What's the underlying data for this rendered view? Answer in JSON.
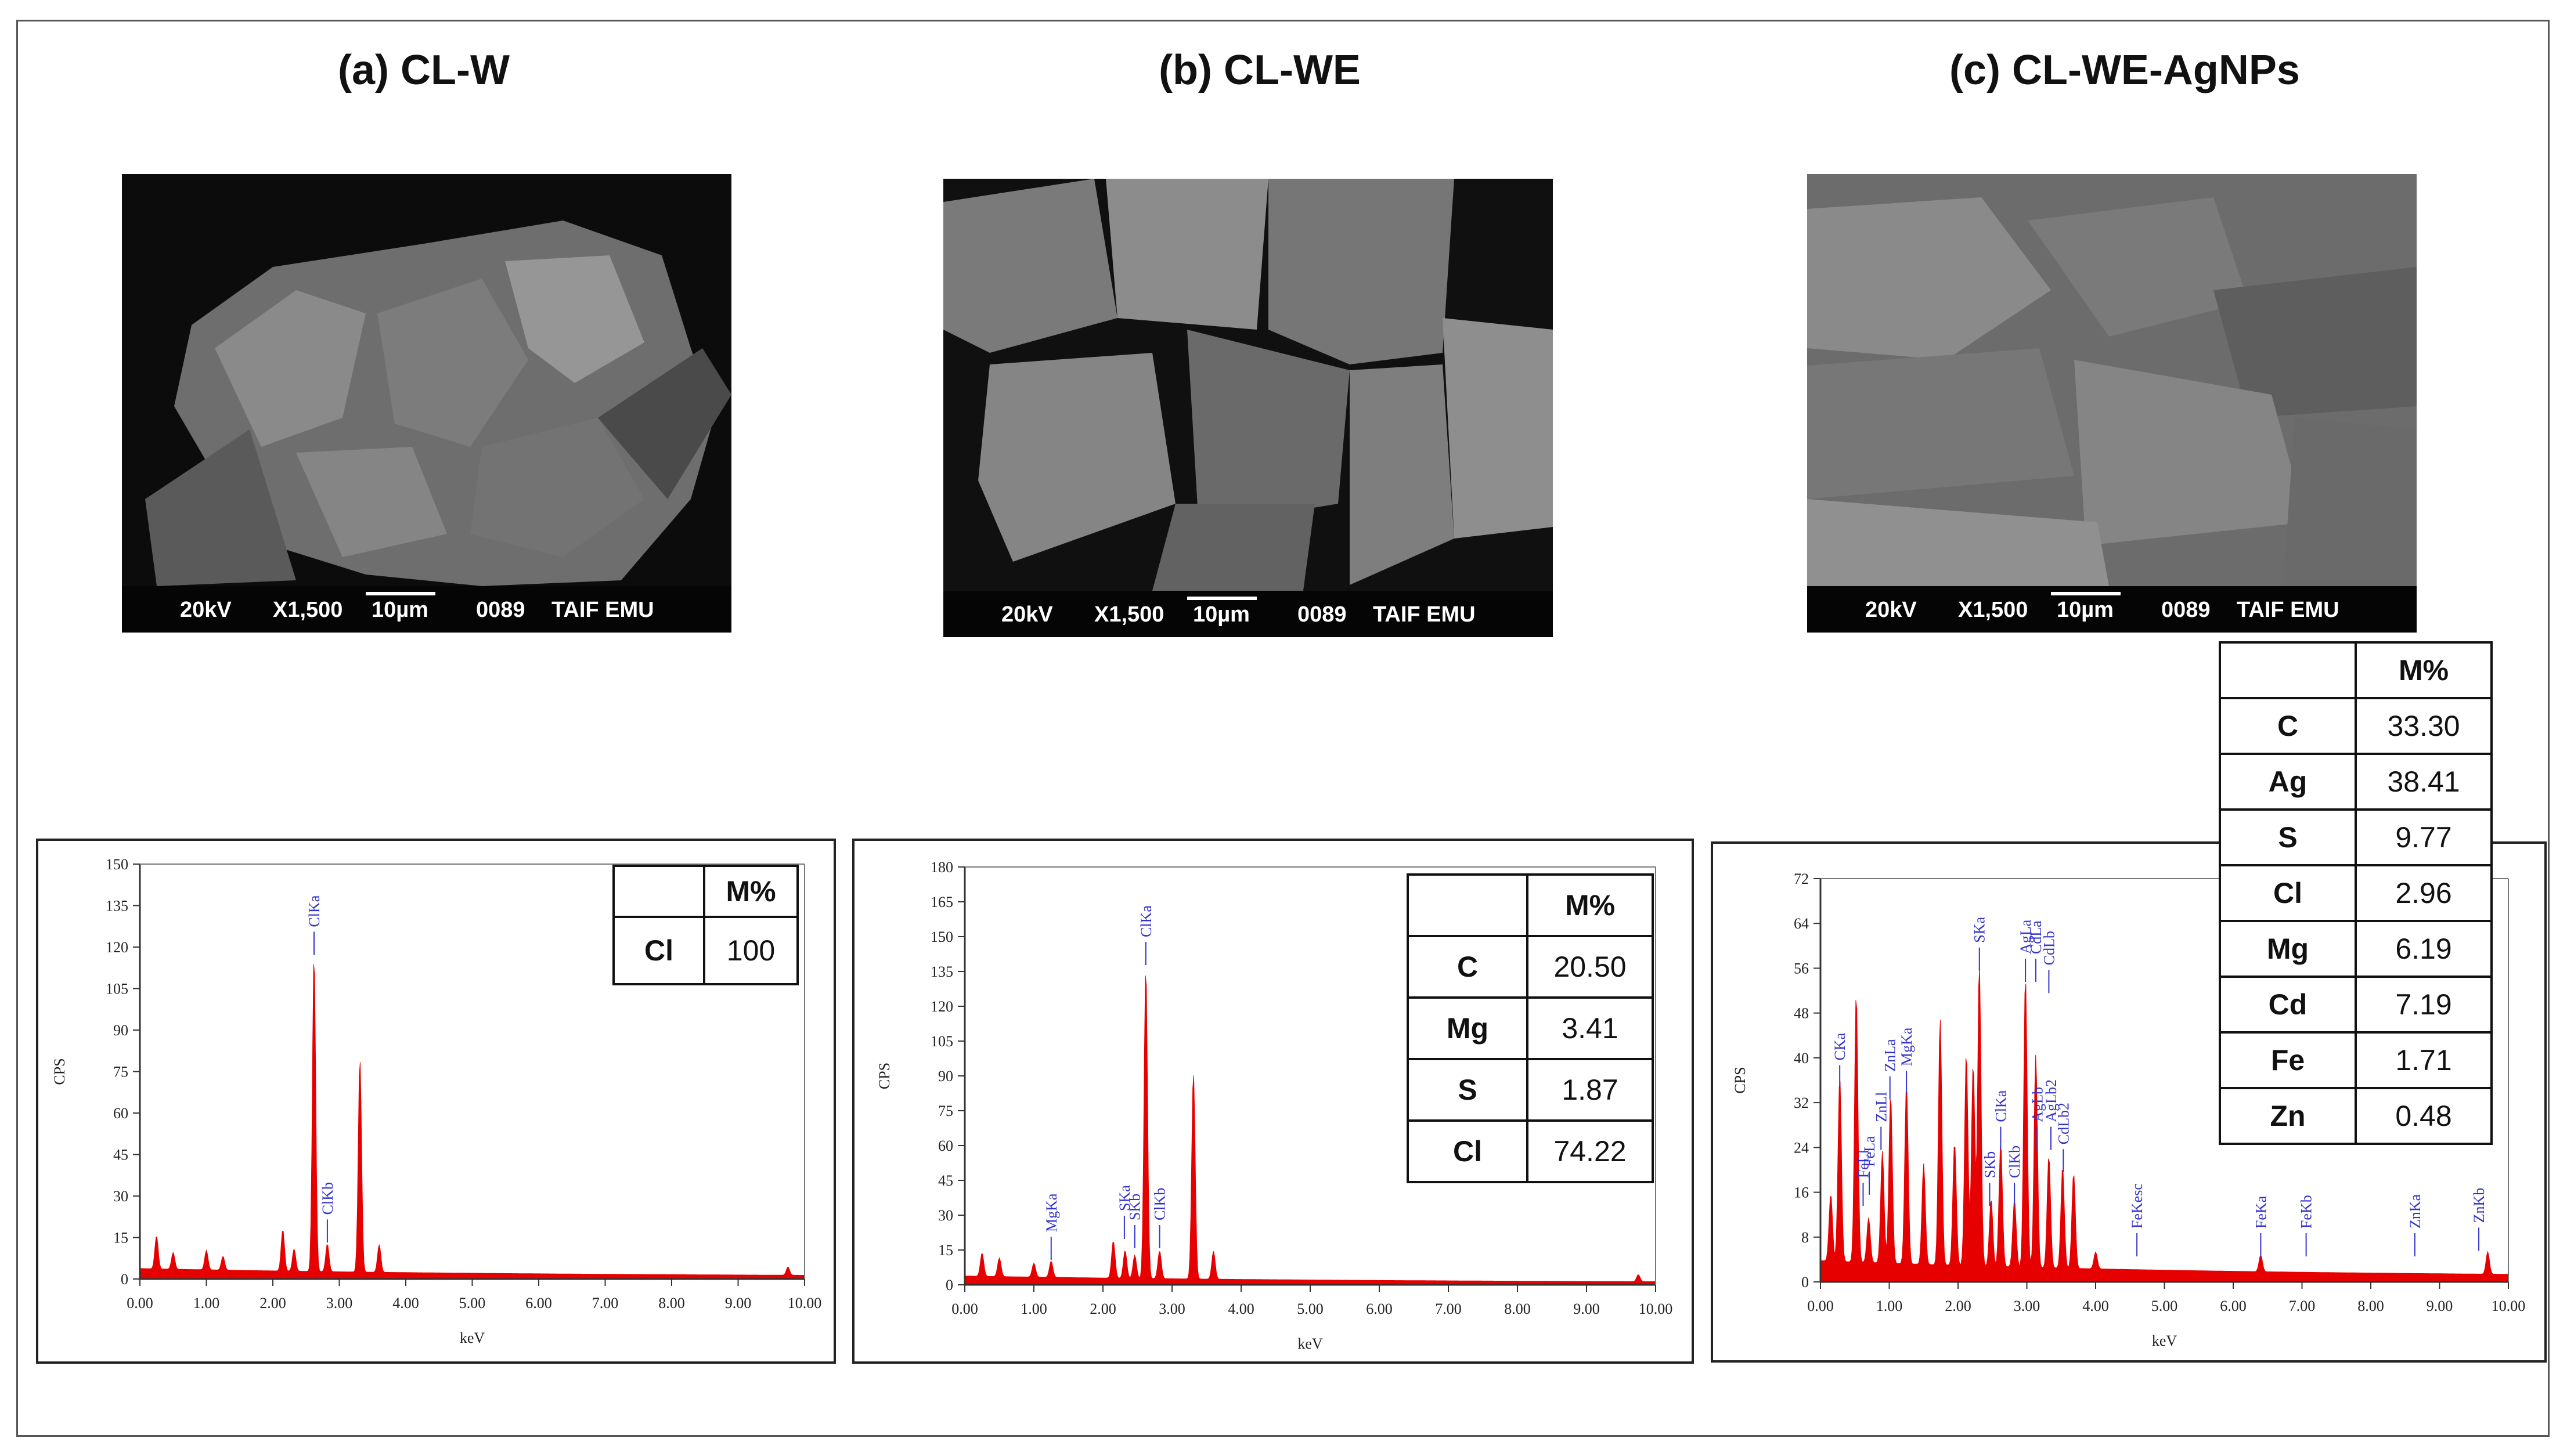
{
  "panels": [
    {
      "title": "(a) CL-W",
      "sem_bar": {
        "kv": "20kV",
        "mag": "X1,500",
        "scale": "10µm",
        "num": "0089",
        "lab": "TAIF EMU"
      },
      "table": {
        "header": "M%",
        "rows": [
          {
            "el": "Cl",
            "val": "100"
          }
        ]
      }
    },
    {
      "title": "(b) CL-WE",
      "sem_bar": {
        "kv": "20kV",
        "mag": "X1,500",
        "scale": "10µm",
        "num": "0089",
        "lab": "TAIF EMU"
      },
      "table": {
        "header": "M%",
        "rows": [
          {
            "el": "C",
            "val": "20.50"
          },
          {
            "el": "Mg",
            "val": "3.41"
          },
          {
            "el": "S",
            "val": "1.87"
          },
          {
            "el": "Cl",
            "val": "74.22"
          }
        ]
      }
    },
    {
      "title": "(c) CL-WE-AgNPs",
      "sem_bar": {
        "kv": "20kV",
        "mag": "X1,500",
        "scale": "10µm",
        "num": "0089",
        "lab": "TAIF EMU"
      },
      "table": {
        "header": "M%",
        "rows": [
          {
            "el": "C",
            "val": "33.30"
          },
          {
            "el": "Ag",
            "val": "38.41"
          },
          {
            "el": "S",
            "val": "9.77"
          },
          {
            "el": "Cl",
            "val": "2.96"
          },
          {
            "el": "Mg",
            "val": "6.19"
          },
          {
            "el": "Cd",
            "val": "7.19"
          },
          {
            "el": "Fe",
            "val": "1.71"
          },
          {
            "el": "Zn",
            "val": "0.48"
          }
        ]
      }
    }
  ],
  "chart_data": [
    {
      "type": "area",
      "xlabel": "keV",
      "ylabel": "CPS",
      "xlim": [
        0,
        10
      ],
      "ylim": [
        0,
        150
      ],
      "xticks": [
        "0.00",
        "1.00",
        "2.00",
        "3.00",
        "4.00",
        "5.00",
        "6.00",
        "7.00",
        "8.00",
        "9.00",
        "10.00"
      ],
      "yticks": [
        "0",
        "15",
        "30",
        "45",
        "60",
        "75",
        "90",
        "105",
        "120",
        "135",
        "150"
      ],
      "fill_color": "#e60000",
      "label_color": "#3333cc",
      "peaks": [
        [
          0.25,
          12
        ],
        [
          0.5,
          6
        ],
        [
          1.0,
          7
        ],
        [
          1.25,
          5
        ],
        [
          2.15,
          15
        ],
        [
          2.32,
          8
        ],
        [
          2.62,
          114
        ],
        [
          2.82,
          10
        ],
        [
          3.31,
          77
        ],
        [
          3.6,
          10
        ],
        [
          9.75,
          3
        ]
      ],
      "baseline": 3,
      "annotations": [
        {
          "label": "ClKa",
          "x": 2.62,
          "y": 114
        },
        {
          "label": "ClKb",
          "x": 2.82,
          "y": 10
        }
      ]
    },
    {
      "type": "area",
      "xlabel": "keV",
      "ylabel": "CPS",
      "xlim": [
        0,
        10
      ],
      "ylim": [
        0,
        180
      ],
      "xticks": [
        "0.00",
        "1.00",
        "2.00",
        "3.00",
        "4.00",
        "5.00",
        "6.00",
        "7.00",
        "8.00",
        "9.00",
        "10.00"
      ],
      "yticks": [
        "0",
        "15",
        "30",
        "45",
        "60",
        "75",
        "90",
        "105",
        "120",
        "135",
        "150",
        "165",
        "180"
      ],
      "fill_color": "#e60000",
      "label_color": "#3333cc",
      "peaks": [
        [
          0.25,
          10
        ],
        [
          0.5,
          8
        ],
        [
          1.0,
          6
        ],
        [
          1.25,
          7
        ],
        [
          2.15,
          16
        ],
        [
          2.32,
          12
        ],
        [
          2.46,
          10
        ],
        [
          2.62,
          134
        ],
        [
          2.82,
          12
        ],
        [
          3.31,
          89
        ],
        [
          3.6,
          12
        ],
        [
          9.75,
          3
        ]
      ],
      "baseline": 3,
      "annotations": [
        {
          "label": "MgKa",
          "x": 1.25,
          "y": 7
        },
        {
          "label": "SKa",
          "x": 2.31,
          "y": 16
        },
        {
          "label": "SKb",
          "x": 2.46,
          "y": 12
        },
        {
          "label": "ClKa",
          "x": 2.62,
          "y": 134
        },
        {
          "label": "ClKb",
          "x": 2.82,
          "y": 12
        }
      ]
    },
    {
      "type": "area",
      "xlabel": "keV",
      "ylabel": "CPS",
      "xlim": [
        0,
        10
      ],
      "ylim": [
        0,
        72
      ],
      "xticks": [
        "0.00",
        "1.00",
        "2.00",
        "3.00",
        "4.00",
        "5.00",
        "6.00",
        "7.00",
        "8.00",
        "9.00",
        "10.00"
      ],
      "yticks": [
        "0",
        "8",
        "16",
        "24",
        "32",
        "40",
        "48",
        "56",
        "64",
        "72"
      ],
      "fill_color": "#e60000",
      "label_color": "#3333cc",
      "peaks": [
        [
          0.15,
          12
        ],
        [
          0.28,
          33
        ],
        [
          0.52,
          48
        ],
        [
          0.7,
          8
        ],
        [
          0.9,
          20
        ],
        [
          1.02,
          30
        ],
        [
          1.25,
          32
        ],
        [
          1.5,
          18
        ],
        [
          1.74,
          44
        ],
        [
          1.95,
          22
        ],
        [
          2.12,
          38
        ],
        [
          2.22,
          36
        ],
        [
          2.31,
          54
        ],
        [
          2.48,
          12
        ],
        [
          2.62,
          22
        ],
        [
          2.82,
          12
        ],
        [
          2.98,
          52
        ],
        [
          3.13,
          38
        ],
        [
          3.32,
          20
        ],
        [
          3.52,
          18
        ],
        [
          3.68,
          17
        ],
        [
          4.0,
          3
        ],
        [
          6.4,
          3
        ],
        [
          9.7,
          4
        ]
      ],
      "baseline": 3,
      "annotations": [
        {
          "label": "CKa",
          "x": 0.28,
          "y": 33
        },
        {
          "label": "FeLl",
          "x": 0.62,
          "y": 12
        },
        {
          "label": "FeLa",
          "x": 0.71,
          "y": 14
        },
        {
          "label": "ZnLl",
          "x": 0.88,
          "y": 22
        },
        {
          "label": "ZnLa",
          "x": 1.01,
          "y": 31
        },
        {
          "label": "MgKa",
          "x": 1.25,
          "y": 32
        },
        {
          "label": "SKa",
          "x": 2.31,
          "y": 54
        },
        {
          "label": "SKb",
          "x": 2.46,
          "y": 12
        },
        {
          "label": "ClKa",
          "x": 2.62,
          "y": 22
        },
        {
          "label": "ClKb",
          "x": 2.82,
          "y": 12
        },
        {
          "label": "CdLa",
          "x": 3.13,
          "y": 52
        },
        {
          "label": "AgLa",
          "x": 2.98,
          "y": 52
        },
        {
          "label": "CdLb",
          "x": 3.32,
          "y": 50
        },
        {
          "label": "AgLb",
          "x": 3.15,
          "y": 22
        },
        {
          "label": "AgLb2",
          "x": 3.35,
          "y": 22
        },
        {
          "label": "CdLb2",
          "x": 3.53,
          "y": 18
        },
        {
          "label": "FeKesc",
          "x": 4.6,
          "y": 3
        },
        {
          "label": "FeKa",
          "x": 6.4,
          "y": 3
        },
        {
          "label": "FeKb",
          "x": 7.06,
          "y": 3
        },
        {
          "label": "ZnKa",
          "x": 8.64,
          "y": 3
        },
        {
          "label": "ZnKb",
          "x": 9.57,
          "y": 4
        }
      ]
    }
  ]
}
